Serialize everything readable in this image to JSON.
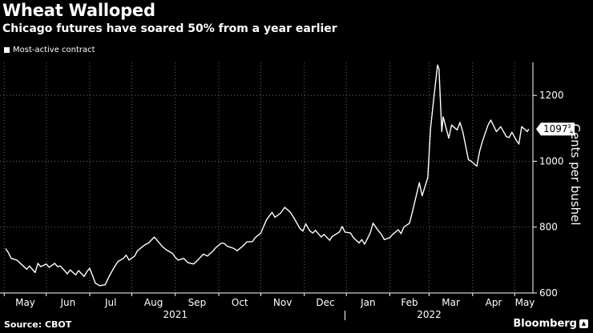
{
  "title": "Wheat Walloped",
  "subtitle": "Chicago futures have soared 50% from a year earlier",
  "source": "Source: CBOT",
  "brand": "Bloomberg",
  "colors": {
    "background": "#000000",
    "line": "#ffffff",
    "grid": "#6b6b6b"
  },
  "chart_data": {
    "type": "line",
    "series": [
      {
        "name": "Most-active contract",
        "points": [
          [
            "2021-05-03",
            735
          ],
          [
            "2021-05-05",
            722
          ],
          [
            "2021-05-07",
            705
          ],
          [
            "2021-05-11",
            700
          ],
          [
            "2021-05-14",
            688
          ],
          [
            "2021-05-18",
            672
          ],
          [
            "2021-05-20",
            682
          ],
          [
            "2021-05-24",
            662
          ],
          [
            "2021-05-26",
            690
          ],
          [
            "2021-05-28",
            680
          ],
          [
            "2021-06-01",
            688
          ],
          [
            "2021-06-03",
            678
          ],
          [
            "2021-06-07",
            690
          ],
          [
            "2021-06-09",
            680
          ],
          [
            "2021-06-11",
            682
          ],
          [
            "2021-06-14",
            668
          ],
          [
            "2021-06-16",
            658
          ],
          [
            "2021-06-18",
            670
          ],
          [
            "2021-06-22",
            655
          ],
          [
            "2021-06-24",
            668
          ],
          [
            "2021-06-28",
            650
          ],
          [
            "2021-06-30",
            665
          ],
          [
            "2021-07-02",
            675
          ],
          [
            "2021-07-06",
            630
          ],
          [
            "2021-07-09",
            622
          ],
          [
            "2021-07-13",
            625
          ],
          [
            "2021-07-16",
            652
          ],
          [
            "2021-07-19",
            675
          ],
          [
            "2021-07-22",
            695
          ],
          [
            "2021-07-26",
            705
          ],
          [
            "2021-07-28",
            715
          ],
          [
            "2021-07-30",
            700
          ],
          [
            "2021-08-03",
            712
          ],
          [
            "2021-08-05",
            728
          ],
          [
            "2021-08-09",
            742
          ],
          [
            "2021-08-11",
            748
          ],
          [
            "2021-08-13",
            752
          ],
          [
            "2021-08-17",
            770
          ],
          [
            "2021-08-19",
            760
          ],
          [
            "2021-08-23",
            740
          ],
          [
            "2021-08-26",
            730
          ],
          [
            "2021-08-30",
            720
          ],
          [
            "2021-09-01",
            708
          ],
          [
            "2021-09-03",
            700
          ],
          [
            "2021-09-07",
            705
          ],
          [
            "2021-09-10",
            692
          ],
          [
            "2021-09-14",
            688
          ],
          [
            "2021-09-17",
            700
          ],
          [
            "2021-09-21",
            718
          ],
          [
            "2021-09-24",
            712
          ],
          [
            "2021-09-28",
            728
          ],
          [
            "2021-09-30",
            738
          ],
          [
            "2021-10-04",
            752
          ],
          [
            "2021-10-06",
            750
          ],
          [
            "2021-10-08",
            742
          ],
          [
            "2021-10-13",
            735
          ],
          [
            "2021-10-15",
            728
          ],
          [
            "2021-10-19",
            742
          ],
          [
            "2021-10-22",
            755
          ],
          [
            "2021-10-26",
            756
          ],
          [
            "2021-10-28",
            768
          ],
          [
            "2021-11-01",
            782
          ],
          [
            "2021-11-03",
            802
          ],
          [
            "2021-11-05",
            822
          ],
          [
            "2021-11-09",
            845
          ],
          [
            "2021-11-11",
            830
          ],
          [
            "2021-11-15",
            842
          ],
          [
            "2021-11-18",
            860
          ],
          [
            "2021-11-22",
            845
          ],
          [
            "2021-11-24",
            832
          ],
          [
            "2021-11-29",
            795
          ],
          [
            "2021-12-01",
            788
          ],
          [
            "2021-12-03",
            810
          ],
          [
            "2021-12-06",
            788
          ],
          [
            "2021-12-08",
            782
          ],
          [
            "2021-12-10",
            790
          ],
          [
            "2021-12-14",
            770
          ],
          [
            "2021-12-16",
            778
          ],
          [
            "2021-12-20",
            760
          ],
          [
            "2021-12-22",
            772
          ],
          [
            "2021-12-27",
            785
          ],
          [
            "2021-12-29",
            802
          ],
          [
            "2021-12-31",
            785
          ],
          [
            "2022-01-04",
            782
          ],
          [
            "2022-01-06",
            768
          ],
          [
            "2022-01-10",
            752
          ],
          [
            "2022-01-12",
            762
          ],
          [
            "2022-01-14",
            748
          ],
          [
            "2022-01-18",
            782
          ],
          [
            "2022-01-20",
            812
          ],
          [
            "2022-01-24",
            788
          ],
          [
            "2022-01-26",
            778
          ],
          [
            "2022-01-28",
            762
          ],
          [
            "2022-02-01",
            768
          ],
          [
            "2022-02-03",
            778
          ],
          [
            "2022-02-07",
            792
          ],
          [
            "2022-02-09",
            780
          ],
          [
            "2022-02-11",
            800
          ],
          [
            "2022-02-15",
            812
          ],
          [
            "2022-02-17",
            845
          ],
          [
            "2022-02-22",
            935
          ],
          [
            "2022-02-24",
            895
          ],
          [
            "2022-02-28",
            950
          ],
          [
            "2022-03-02",
            1100
          ],
          [
            "2022-03-04",
            1180
          ],
          [
            "2022-03-07",
            1292
          ],
          [
            "2022-03-08",
            1280
          ],
          [
            "2022-03-10",
            1090
          ],
          [
            "2022-03-11",
            1135
          ],
          [
            "2022-03-15",
            1070
          ],
          [
            "2022-03-17",
            1110
          ],
          [
            "2022-03-21",
            1095
          ],
          [
            "2022-03-23",
            1118
          ],
          [
            "2022-03-25",
            1090
          ],
          [
            "2022-03-29",
            1005
          ],
          [
            "2022-03-31",
            1000
          ],
          [
            "2022-04-04",
            985
          ],
          [
            "2022-04-06",
            1030
          ],
          [
            "2022-04-08",
            1060
          ],
          [
            "2022-04-12",
            1110
          ],
          [
            "2022-04-14",
            1125
          ],
          [
            "2022-04-18",
            1090
          ],
          [
            "2022-04-21",
            1105
          ],
          [
            "2022-04-25",
            1075
          ],
          [
            "2022-04-27",
            1072
          ],
          [
            "2022-04-29",
            1088
          ],
          [
            "2022-05-02",
            1065
          ],
          [
            "2022-05-04",
            1052
          ],
          [
            "2022-05-06",
            1105
          ],
          [
            "2022-05-10",
            1090
          ],
          [
            "2022-05-11",
            1097.75
          ]
        ]
      }
    ],
    "ylim": [
      600,
      1300
    ],
    "yticks": [
      600,
      800,
      1000,
      1200
    ],
    "ylabel": "Cents per bushel",
    "xrange": [
      "2021-04-29",
      "2022-05-14"
    ],
    "xticks": [
      {
        "date": "2021-05-02",
        "label": "May"
      },
      {
        "date": "2021-06-01",
        "label": "Jun"
      },
      {
        "date": "2021-07-02",
        "label": "Jul"
      },
      {
        "date": "2021-08-01",
        "label": "Aug"
      },
      {
        "date": "2021-09-01",
        "label": "Sep"
      },
      {
        "date": "2021-10-02",
        "label": "Oct"
      },
      {
        "date": "2021-11-01",
        "label": "Nov"
      },
      {
        "date": "2021-12-02",
        "label": "Dec"
      },
      {
        "date": "2022-01-01",
        "label": "Jan"
      },
      {
        "date": "2022-02-01",
        "label": "Feb"
      },
      {
        "date": "2022-03-01",
        "label": "Mar"
      },
      {
        "date": "2022-04-01",
        "label": "Apr"
      },
      {
        "date": "2022-05-01",
        "label": "May"
      }
    ],
    "years": [
      {
        "date": "2021-09-01",
        "label": "2021"
      },
      {
        "date": "2022-03-01",
        "label": "2022"
      }
    ],
    "year_divider": "2021-12-31",
    "grid": true,
    "legend_position": "top-left",
    "last_value": {
      "value": 1097.75,
      "label_main": "1097",
      "label_frac": "3",
      "label_denom": "4"
    }
  }
}
